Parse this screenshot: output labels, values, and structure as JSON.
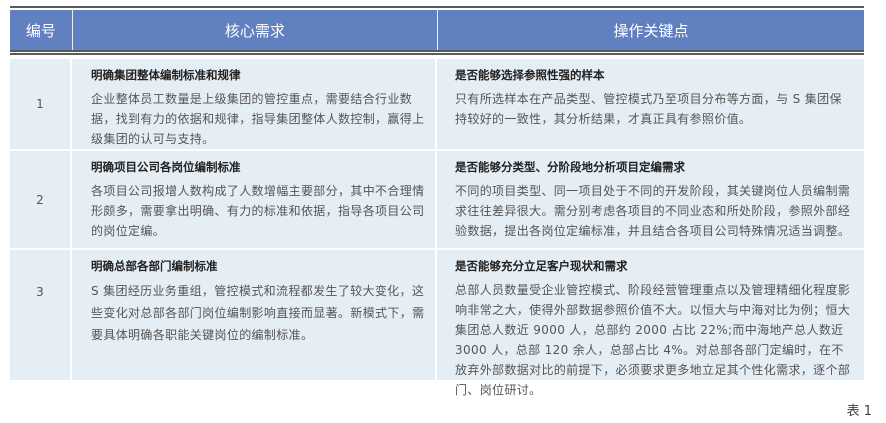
{
  "table": {
    "headers": [
      "编号",
      "核心需求",
      "操作关键点"
    ],
    "rows": [
      {
        "num": "1",
        "need_title": "明确集团整体编制标准和规律",
        "need_body": "企业整体员工数量是上级集团的管控重点，需要结合行业数据，找到有力的依据和规律，指导集团整体人数控制，赢得上级集团的认可与支持。",
        "key_title": "是否能够选择参照性强的样本",
        "key_body": "只有所选样本在产品类型、管控模式乃至项目分布等方面，与 S 集团保持较好的一致性，其分析结果，才真正具有参照价值。"
      },
      {
        "num": "2",
        "need_title": "明确项目公司各岗位编制标准",
        "need_body": "各项目公司报增人数构成了人数增幅主要部分，其中不合理情形颇多，需要拿出明确、有力的标准和依据，指导各项目公司的岗位定编。",
        "key_title": "是否能够分类型、分阶段地分析项目定编需求",
        "key_body": "不同的项目类型、同一项目处于不同的开发阶段，其关键岗位人员编制需求往往差异很大。需分别考虑各项目的不同业态和所处阶段，参照外部经验数据，提出各岗位定编标准，并且结合各项目公司特殊情况适当调整。"
      },
      {
        "num": "3",
        "need_title": "明确总部各部门编制标准",
        "need_body": "S 集团经历业务重组，管控模式和流程都发生了较大变化，这些变化对总部各部门岗位编制影响直接而显著。新模式下，需要具体明确各职能关键岗位的编制标准。",
        "key_title": "是否能够充分立足客户现状和需求",
        "key_body": "总部人员数量受企业管控模式、阶段经营管理重点以及管理精细化程度影响非常之大，使得外部数据参照价值不大。以恒大与中海对比为例；恒大集团总人数近 9000 人，总部约 2000 占比 22%;而中海地产总人数近 3000 人，总部 120 余人，总部占比 4%。对总部各部门定编时，在不放弃外部数据对比的前提下，必须要求更多地立足其个性化需求，逐个部门、岗位研讨。"
      }
    ]
  },
  "caption": "表 1",
  "colors": {
    "header_bg": "#6080bf",
    "row_bg": "#e6eef5",
    "rule": "#5a5a5a"
  }
}
